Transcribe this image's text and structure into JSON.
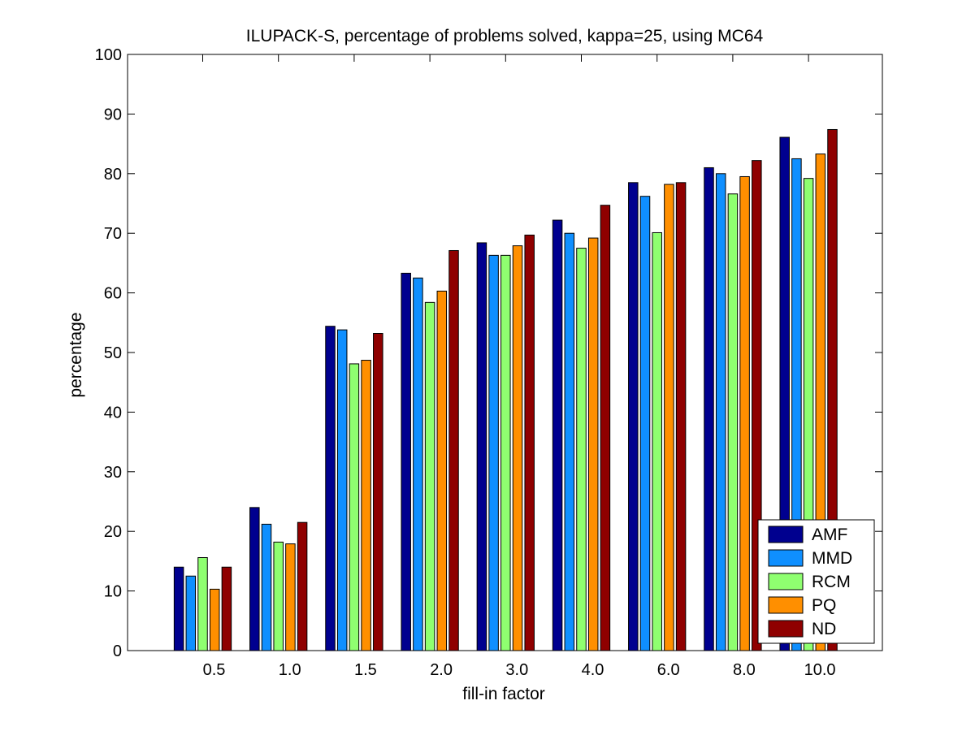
{
  "chart_data": {
    "type": "bar",
    "title": "ILUPACK-S, percentage of problems solved, kappa=25, using MC64",
    "xlabel": "fill-in factor",
    "ylabel": "percentage",
    "ylim": [
      0,
      100
    ],
    "yticks": [
      0,
      10,
      20,
      30,
      40,
      50,
      60,
      70,
      80,
      90,
      100
    ],
    "grid": false,
    "legend_position": "bottom-right",
    "categories": [
      "0.5",
      "1.0",
      "1.5",
      "2.0",
      "3.0",
      "4.0",
      "6.0",
      "8.0",
      "10.0"
    ],
    "series": [
      {
        "name": "AMF",
        "color": "#00008f",
        "values": [
          14.0,
          24.0,
          54.4,
          63.3,
          68.4,
          72.2,
          78.5,
          81.0,
          86.1
        ]
      },
      {
        "name": "MMD",
        "color": "#0f8fff",
        "values": [
          12.5,
          21.2,
          53.8,
          62.5,
          66.3,
          70.0,
          76.2,
          80.0,
          82.5
        ]
      },
      {
        "name": "RCM",
        "color": "#8fff70",
        "values": [
          15.6,
          18.2,
          48.1,
          58.4,
          66.3,
          67.5,
          70.1,
          76.6,
          79.2
        ]
      },
      {
        "name": "PQ",
        "color": "#ff8f00",
        "values": [
          10.3,
          17.9,
          48.7,
          60.3,
          67.9,
          69.2,
          78.2,
          79.5,
          83.3
        ]
      },
      {
        "name": "ND",
        "color": "#8f0000",
        "values": [
          14.0,
          21.5,
          53.2,
          67.1,
          69.7,
          74.7,
          78.5,
          82.2,
          87.4
        ]
      }
    ]
  }
}
